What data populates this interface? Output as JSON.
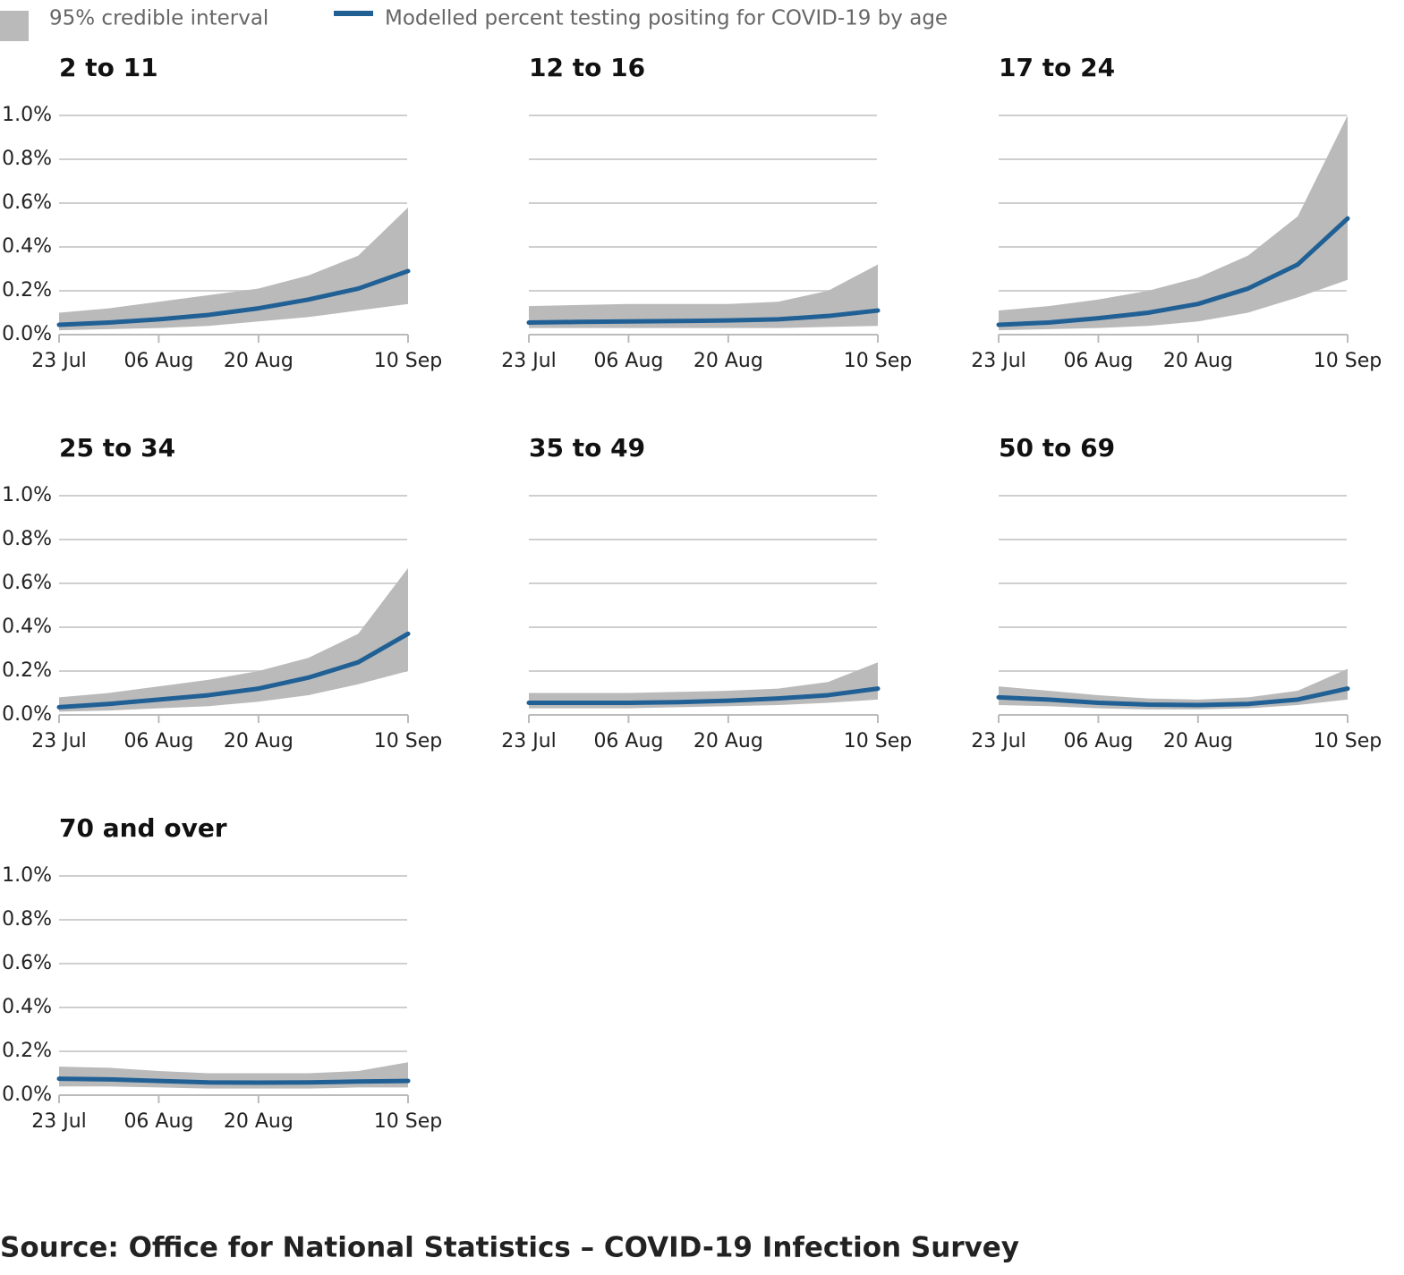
{
  "legend": [
    {
      "name": "95% credible interval",
      "color": "#bababa"
    },
    {
      "name": "Modelled percent testing positing for COVID-19 by age",
      "color": "#206095"
    }
  ],
  "source": "Source: Office for National Statistics – COVID-19 Infection Survey",
  "chart_data": [
    {
      "type": "line",
      "title": "2 to 11",
      "x": [
        "23 Jul",
        "30 Jul",
        "06 Aug",
        "13 Aug",
        "20 Aug",
        "27 Aug",
        "03 Sep",
        "10 Sep"
      ],
      "xticks": [
        "23 Jul",
        "06 Aug",
        "20 Aug",
        "10 Sep"
      ],
      "ylim": [
        0,
        1
      ],
      "yticks": [
        {
          "value": 0,
          "label": "0.0%"
        },
        {
          "value": 0.2,
          "label": "0.2%"
        },
        {
          "value": 0.4,
          "label": "0.4%"
        },
        {
          "value": 0.6,
          "label": "0.6%"
        },
        {
          "value": 0.8,
          "label": "0.8%"
        },
        {
          "value": 1,
          "label": "1.0%"
        }
      ],
      "grid": true,
      "values": [
        0.045,
        0.055,
        0.07,
        0.09,
        0.12,
        0.16,
        0.21,
        0.29
      ],
      "lower": [
        0.02,
        0.025,
        0.03,
        0.04,
        0.06,
        0.08,
        0.11,
        0.14
      ],
      "upper": [
        0.1,
        0.12,
        0.15,
        0.18,
        0.21,
        0.27,
        0.36,
        0.58
      ]
    },
    {
      "type": "line",
      "title": "12 to 16",
      "x": [
        "23 Jul",
        "30 Jul",
        "06 Aug",
        "13 Aug",
        "20 Aug",
        "27 Aug",
        "03 Sep",
        "10 Sep"
      ],
      "xticks": [
        "23 Jul",
        "06 Aug",
        "20 Aug",
        "10 Sep"
      ],
      "ylim": [
        0,
        1
      ],
      "yticks": [
        0,
        0.2,
        0.4,
        0.6,
        0.8,
        1
      ],
      "grid": true,
      "values": [
        0.055,
        0.058,
        0.06,
        0.062,
        0.065,
        0.07,
        0.085,
        0.11
      ],
      "lower": [
        0.03,
        0.03,
        0.03,
        0.03,
        0.03,
        0.03,
        0.035,
        0.04
      ],
      "upper": [
        0.13,
        0.135,
        0.14,
        0.14,
        0.14,
        0.15,
        0.2,
        0.32
      ]
    },
    {
      "type": "line",
      "title": "17 to 24",
      "x": [
        "23 Jul",
        "30 Jul",
        "06 Aug",
        "13 Aug",
        "20 Aug",
        "27 Aug",
        "03 Sep",
        "10 Sep"
      ],
      "xticks": [
        "23 Jul",
        "06 Aug",
        "20 Aug",
        "10 Sep"
      ],
      "ylim": [
        0,
        1
      ],
      "yticks": [
        0,
        0.2,
        0.4,
        0.6,
        0.8,
        1
      ],
      "grid": true,
      "values": [
        0.045,
        0.055,
        0.075,
        0.1,
        0.14,
        0.21,
        0.32,
        0.53
      ],
      "lower": [
        0.02,
        0.025,
        0.03,
        0.04,
        0.06,
        0.1,
        0.17,
        0.25
      ],
      "upper": [
        0.11,
        0.13,
        0.16,
        0.2,
        0.26,
        0.36,
        0.54,
        1.0
      ]
    },
    {
      "type": "line",
      "title": "25 to 34",
      "x": [
        "23 Jul",
        "30 Jul",
        "06 Aug",
        "13 Aug",
        "20 Aug",
        "27 Aug",
        "03 Sep",
        "10 Sep"
      ],
      "xticks": [
        "23 Jul",
        "06 Aug",
        "20 Aug",
        "10 Sep"
      ],
      "ylim": [
        0,
        1
      ],
      "yticks": [
        {
          "value": 0,
          "label": "0.0%"
        },
        {
          "value": 0.2,
          "label": "0.2%"
        },
        {
          "value": 0.4,
          "label": "0.4%"
        },
        {
          "value": 0.6,
          "label": "0.6%"
        },
        {
          "value": 0.8,
          "label": "0.8%"
        },
        {
          "value": 1,
          "label": "1.0%"
        }
      ],
      "grid": true,
      "values": [
        0.035,
        0.05,
        0.07,
        0.09,
        0.12,
        0.17,
        0.24,
        0.37
      ],
      "lower": [
        0.015,
        0.02,
        0.03,
        0.04,
        0.06,
        0.09,
        0.14,
        0.2
      ],
      "upper": [
        0.08,
        0.1,
        0.13,
        0.16,
        0.2,
        0.26,
        0.37,
        0.67
      ]
    },
    {
      "type": "line",
      "title": "35 to 49",
      "x": [
        "23 Jul",
        "30 Jul",
        "06 Aug",
        "13 Aug",
        "20 Aug",
        "27 Aug",
        "03 Sep",
        "10 Sep"
      ],
      "xticks": [
        "23 Jul",
        "06 Aug",
        "20 Aug",
        "10 Sep"
      ],
      "ylim": [
        0,
        1
      ],
      "yticks": [
        0,
        0.2,
        0.4,
        0.6,
        0.8,
        1
      ],
      "grid": true,
      "values": [
        0.055,
        0.055,
        0.055,
        0.058,
        0.065,
        0.075,
        0.09,
        0.12
      ],
      "lower": [
        0.03,
        0.03,
        0.03,
        0.035,
        0.04,
        0.045,
        0.055,
        0.07
      ],
      "upper": [
        0.1,
        0.1,
        0.1,
        0.105,
        0.11,
        0.12,
        0.15,
        0.24
      ]
    },
    {
      "type": "line",
      "title": "50 to 69",
      "x": [
        "23 Jul",
        "30 Jul",
        "06 Aug",
        "13 Aug",
        "20 Aug",
        "27 Aug",
        "03 Sep",
        "10 Sep"
      ],
      "xticks": [
        "23 Jul",
        "06 Aug",
        "20 Aug",
        "10 Sep"
      ],
      "ylim": [
        0,
        1
      ],
      "yticks": [
        0,
        0.2,
        0.4,
        0.6,
        0.8,
        1
      ],
      "grid": true,
      "values": [
        0.08,
        0.07,
        0.055,
        0.047,
        0.045,
        0.05,
        0.07,
        0.12
      ],
      "lower": [
        0.045,
        0.04,
        0.03,
        0.025,
        0.025,
        0.03,
        0.045,
        0.07
      ],
      "upper": [
        0.13,
        0.11,
        0.09,
        0.075,
        0.07,
        0.08,
        0.11,
        0.21
      ]
    },
    {
      "type": "line",
      "title": "70 and over",
      "x": [
        "23 Jul",
        "30 Jul",
        "06 Aug",
        "13 Aug",
        "20 Aug",
        "27 Aug",
        "03 Sep",
        "10 Sep"
      ],
      "xticks": [
        "23 Jul",
        "06 Aug",
        "20 Aug",
        "10 Sep"
      ],
      "ylim": [
        0,
        1
      ],
      "yticks": [
        {
          "value": 0,
          "label": "0.0%"
        },
        {
          "value": 0.2,
          "label": "0.2%"
        },
        {
          "value": 0.4,
          "label": "0.4%"
        },
        {
          "value": 0.6,
          "label": "0.6%"
        },
        {
          "value": 0.8,
          "label": "0.8%"
        },
        {
          "value": 1,
          "label": "1.0%"
        }
      ],
      "grid": true,
      "values": [
        0.075,
        0.072,
        0.065,
        0.058,
        0.057,
        0.058,
        0.062,
        0.065
      ],
      "lower": [
        0.04,
        0.04,
        0.035,
        0.03,
        0.03,
        0.03,
        0.035,
        0.035
      ],
      "upper": [
        0.13,
        0.125,
        0.11,
        0.1,
        0.1,
        0.1,
        0.11,
        0.15
      ]
    }
  ]
}
